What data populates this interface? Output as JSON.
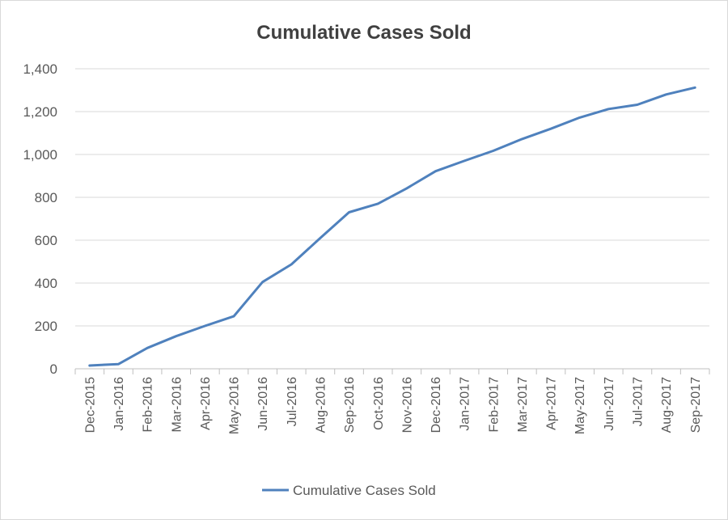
{
  "chart_data": {
    "type": "line",
    "title": "Cumulative Cases Sold",
    "xlabel": "",
    "ylabel": "",
    "ylim": [
      0,
      1400
    ],
    "yticks": [
      "0",
      "200",
      "400",
      "600",
      "800",
      "1,000",
      "1,200",
      "1,400"
    ],
    "grid": true,
    "legend_position": "bottom",
    "categories": [
      "Dec-2015",
      "Jan-2016",
      "Feb-2016",
      "Mar-2016",
      "Apr-2016",
      "May-2016",
      "Jun-2016",
      "Jul-2016",
      "Aug-2016",
      "Sep-2016",
      "Oct-2016",
      "Nov-2016",
      "Dec-2016",
      "Jan-2017",
      "Feb-2017",
      "Mar-2017",
      "Apr-2017",
      "May-2017",
      "Jun-2017",
      "Jul-2017",
      "Aug-2017",
      "Sep-2017"
    ],
    "series": [
      {
        "name": "Cumulative Cases Sold",
        "color": "#4f81bd",
        "values": [
          15,
          22,
          97,
          152,
          200,
          245,
          405,
          487,
          610,
          730,
          770,
          842,
          922,
          970,
          1017,
          1072,
          1120,
          1172,
          1212,
          1232,
          1280,
          1312
        ]
      }
    ]
  }
}
